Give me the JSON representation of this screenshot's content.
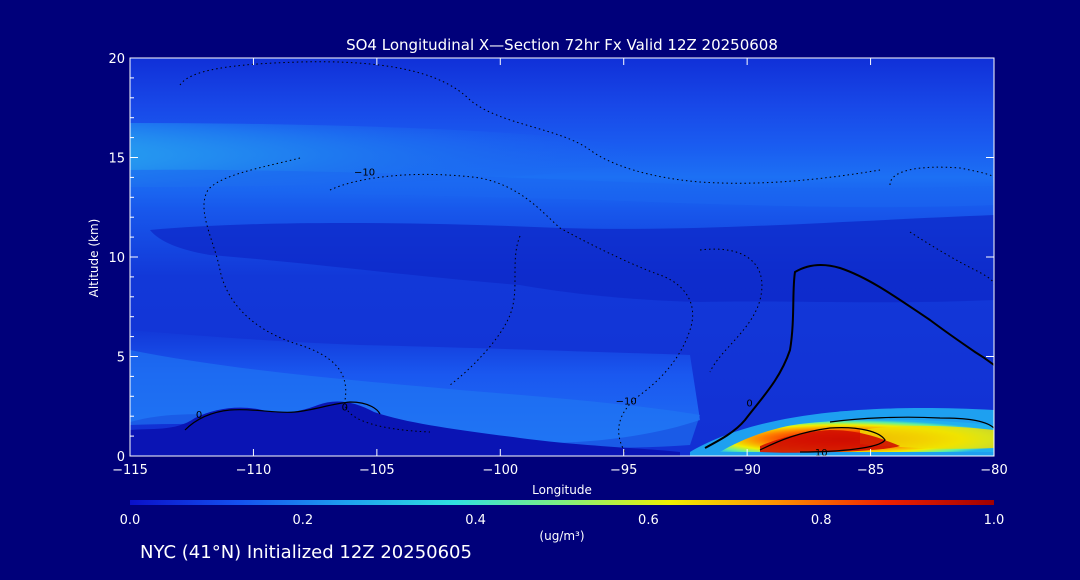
{
  "chart_data": {
    "type": "heatmap",
    "title": "SO4 Longitudinal X—Section 72hr  Fx Valid 12Z 20250608",
    "xlabel": "Longitude",
    "ylabel": "Altitude (km)",
    "xlim": [
      -115,
      -80
    ],
    "ylim": [
      0,
      20
    ],
    "x_ticks": [
      -115,
      -110,
      -105,
      -100,
      -95,
      -90,
      -85,
      -80
    ],
    "x_tick_labels": [
      "−115",
      "−110",
      "−105",
      "−100",
      "−95",
      "−90",
      "−85",
      "−80"
    ],
    "y_ticks": [
      0,
      5,
      10,
      15,
      20
    ],
    "y_tick_labels": [
      "0",
      "5",
      "10",
      "15",
      "20"
    ],
    "colorbar": {
      "min": 0.0,
      "max": 1.0,
      "ticks": [
        0.0,
        0.2,
        0.4,
        0.6,
        0.8,
        1.0
      ],
      "tick_labels": [
        "0.0",
        "0.2",
        "0.4",
        "0.6",
        "0.8",
        "1.0"
      ],
      "unit_label": "(ug/m³)",
      "colors": [
        "#0a10c8",
        "#1450f0",
        "#1ea0f0",
        "#30e0e0",
        "#80f080",
        "#f0f000",
        "#ff9000",
        "#f02000",
        "#a00000"
      ]
    },
    "contour_labels": [
      {
        "text": "−10",
        "lon": -105.5,
        "alt": 14.3
      },
      {
        "text": "0",
        "lon": -112.2,
        "alt": 2.1
      },
      {
        "text": "0",
        "lon": -106.3,
        "alt": 2.5
      },
      {
        "text": "−10",
        "lon": -94.9,
        "alt": 2.8
      },
      {
        "text": "0",
        "lon": -89.9,
        "alt": 2.7
      },
      {
        "text": "10",
        "lon": -87.0,
        "alt": 0.2
      }
    ],
    "grid": false
  },
  "footer": {
    "text": "NYC (41°N) Initialized 12Z 20250605"
  }
}
